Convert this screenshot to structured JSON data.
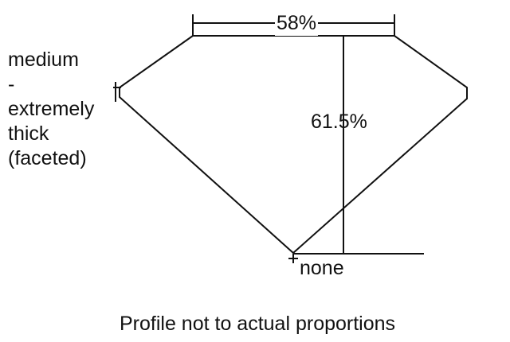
{
  "table_percent": "58%",
  "depth_percent": "61.5%",
  "girdle_label": [
    "medium",
    "-",
    "extremely",
    "thick",
    "(faceted)"
  ],
  "culet_label": "none",
  "caption": "Profile not to actual proportions"
}
